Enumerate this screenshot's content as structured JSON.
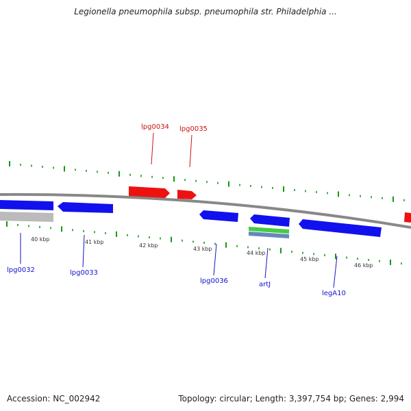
{
  "title": "Legionella pneumophila subsp. pneumophila str. Philadelphia ...",
  "footer": {
    "accession": "Accession: NC_002942",
    "topology": "Topology: circular; Length: 3,397,754 bp; Genes: 2,994"
  },
  "colors": {
    "forward_strand": "#ee1111",
    "reverse_strand": "#1111ee",
    "backbone": "#888888",
    "ticks": "#119911",
    "rna": "#44cc44",
    "other": "#6688bb",
    "pseudo": "#bbbbbb"
  },
  "kbp_labels": [
    "40 kbp",
    "41 kbp",
    "42 kbp",
    "43 kbp",
    "44 kbp",
    "45 kbp",
    "46 kbp"
  ],
  "genes": [
    {
      "name": "lpg0032",
      "strand": "reverse"
    },
    {
      "name": "lpg0033",
      "strand": "reverse"
    },
    {
      "name": "lpg0034",
      "strand": "forward"
    },
    {
      "name": "lpg0035",
      "strand": "forward"
    },
    {
      "name": "lpg0036",
      "strand": "reverse"
    },
    {
      "name": "artJ",
      "strand": "reverse"
    },
    {
      "name": "legA10",
      "strand": "reverse"
    }
  ]
}
